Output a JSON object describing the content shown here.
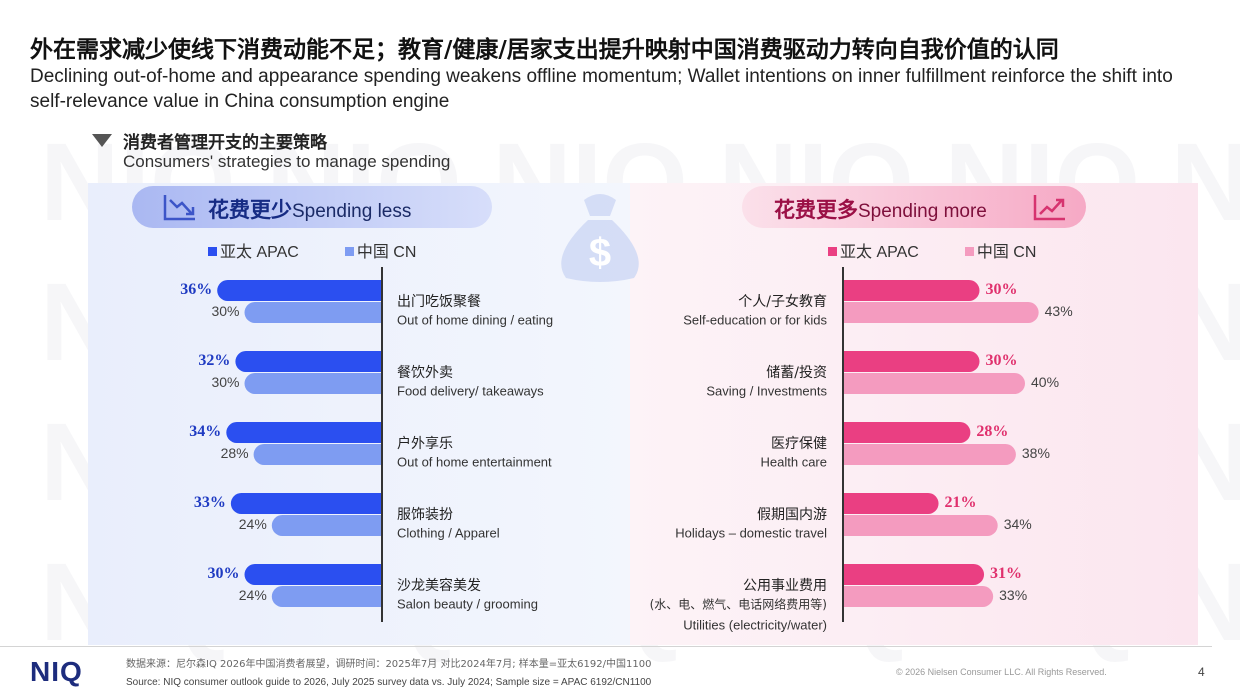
{
  "header": {
    "title_zh": "外在需求减少使线下消费动能不足；教育/健康/居家支出提升映射中国消费驱动力转向自我价值的认同",
    "title_en": "Declining out-of-home and appearance spending weakens offline momentum; Wallet intentions on inner fulfillment reinforce the shift into self-relevance value in China consumption engine"
  },
  "section": {
    "title_zh": "消费者管理开支的主要策略",
    "title_en": "Consumers' strategies to manage spending"
  },
  "panels": {
    "left": {
      "title_zh": "花费更少",
      "title_en": "Spending less"
    },
    "right": {
      "title_zh": "花费更多",
      "title_en": "Spending more"
    }
  },
  "legend": {
    "apac": "亚太 APAC",
    "cn": "中国 CN"
  },
  "icons": {
    "left_panel": "chart-down-icon",
    "right_panel": "chart-up-icon",
    "center": "money-bag-icon",
    "section": "triangle-down-icon"
  },
  "colors": {
    "apac_less": "#2b4ff0",
    "cn_less": "#7e9cf2",
    "apac_more": "#ea3f82",
    "cn_more": "#f49bbf",
    "less_value": "#1f3bc2",
    "more_value": "#e0306d"
  },
  "chart_data": [
    {
      "type": "bar",
      "title": "花费更少 Spending less",
      "categories": [
        {
          "zh": "出门吃饭聚餐",
          "en": "Out of home dining / eating"
        },
        {
          "zh": "餐饮外卖",
          "en": "Food delivery/ takeaways"
        },
        {
          "zh": "户外享乐",
          "en": "Out of home entertainment"
        },
        {
          "zh": "服饰装扮",
          "en": "Clothing / Apparel"
        },
        {
          "zh": "沙龙美容美发",
          "en": "Salon beauty / grooming"
        }
      ],
      "series": [
        {
          "name": "亚太 APAC",
          "values": [
            36,
            32,
            34,
            33,
            30
          ],
          "labels": [
            "36%",
            "32%",
            "34%",
            "33%",
            "30%"
          ]
        },
        {
          "name": "中国 CN",
          "values": [
            30,
            30,
            28,
            24,
            24
          ],
          "labels": [
            "30%",
            "30%",
            "28%",
            "24%",
            "24%"
          ]
        }
      ]
    },
    {
      "type": "bar",
      "title": "花费更多 Spending more",
      "categories": [
        {
          "zh": "个人/子女教育",
          "en": "Self-education or for kids"
        },
        {
          "zh": "储蓄/投资",
          "en": "Saving / Investments"
        },
        {
          "zh": "医疗保健",
          "en": "Health care"
        },
        {
          "zh": "假期国内游",
          "en": "Holidays – domestic travel"
        },
        {
          "zh": "公用事业费用",
          "zh2": "(水、电、燃气、电话网络费用等)",
          "en": "Utilities (electricity/water)"
        }
      ],
      "series": [
        {
          "name": "亚太 APAC",
          "values": [
            30,
            30,
            28,
            21,
            31
          ],
          "labels": [
            "30%",
            "30%",
            "28%",
            "21%",
            "31%"
          ]
        },
        {
          "name": "中国 CN",
          "values": [
            43,
            40,
            38,
            34,
            33
          ],
          "labels": [
            "43%",
            "40%",
            "38%",
            "34%",
            "33%"
          ]
        }
      ]
    }
  ],
  "footer": {
    "logo": "NIQ",
    "source_zh": "数据来源：尼尔森IQ 2026年中国消费者展望，调研时间：2025年7月 对比2024年7月; 样本量=亚太6192/中国1100",
    "source_en": "Source: NIQ consumer outlook guide to 2026, July 2025 survey data vs. July 2024;   Sample size = APAC 6192/CN1100",
    "copyright": "© 2026 Nielsen Consumer LLC. All Rights Reserved.",
    "page": "4"
  }
}
